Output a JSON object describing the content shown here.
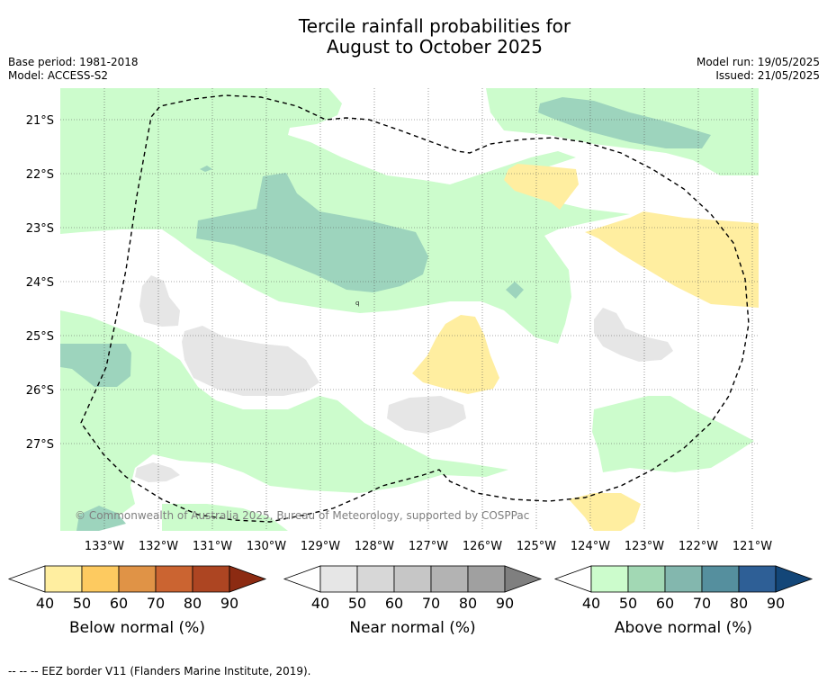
{
  "title_line1": "Tercile rainfall probabilities for",
  "title_line2": "August to October 2025",
  "meta_left": {
    "base_period": "Base period: 1981-2018",
    "model": "Model: ACCESS-S2"
  },
  "meta_right": {
    "model_run": "Model run: 19/05/2025",
    "issued": "Issued: 21/05/2025"
  },
  "copyright": "© Commonwealth of Australia 2025, Bureau of Meteorology, supported by COSPPac",
  "lat_labels": [
    "21°S",
    "22°S",
    "23°S",
    "24°S",
    "25°S",
    "26°S",
    "27°S"
  ],
  "lon_labels": [
    "133°W",
    "132°W",
    "131°W",
    "130°W",
    "129°W",
    "128°W",
    "127°W",
    "126°W",
    "125°W",
    "124°W",
    "123°W",
    "122°W",
    "121°W"
  ],
  "legends": [
    {
      "label": "Below normal (%)",
      "ticks": [
        "40",
        "50",
        "60",
        "70",
        "80",
        "90"
      ],
      "colors": [
        "#ffffff",
        "#ffeea0",
        "#fdca60",
        "#e09346",
        "#cb6431",
        "#ad4522",
        "#8c2b12"
      ]
    },
    {
      "label": "Near normal (%)",
      "ticks": [
        "40",
        "50",
        "60",
        "70",
        "80",
        "90"
      ],
      "colors": [
        "#ffffff",
        "#e6e6e6",
        "#d7d7d7",
        "#c6c6c6",
        "#b3b3b3",
        "#a0a0a0",
        "#7f7f7f"
      ]
    },
    {
      "label": "Above normal (%)",
      "ticks": [
        "40",
        "50",
        "60",
        "70",
        "80",
        "90"
      ],
      "colors": [
        "#ffffff",
        "#ccfccc",
        "#a2d8b4",
        "#83b7ae",
        "#558f9e",
        "#2e5f96",
        "#134678"
      ]
    }
  ],
  "footer": "--  --  -- EEZ border V11 (Flanders Marine Institute, 2019)."
}
